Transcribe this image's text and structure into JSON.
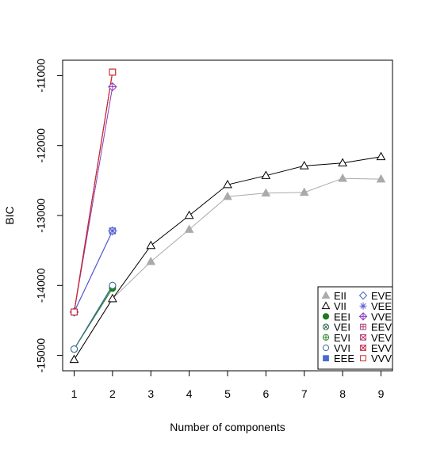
{
  "chart_data": {
    "type": "line",
    "title": "",
    "xlabel": "Number of components",
    "ylabel": "BIC",
    "x_ticks": [
      "1",
      "2",
      "3",
      "4",
      "5",
      "6",
      "7",
      "8",
      "9"
    ],
    "y_ticks": [
      "-15000",
      "-14000",
      "-13000",
      "-12000",
      "-11000"
    ],
    "xlim": [
      0.7,
      9.3
    ],
    "ylim": [
      -15220,
      -10780
    ],
    "grid": false,
    "legend_position": "bottom-right",
    "series": [
      {
        "name": "EII",
        "marker": "triangle-filled",
        "color": "#aaaaaa",
        "x": [
          1,
          2,
          3,
          4,
          5,
          6,
          7,
          8,
          9
        ],
        "values": [
          -15060,
          -14190,
          -13660,
          -13200,
          -12730,
          -12680,
          -12670,
          -12470,
          -12480
        ]
      },
      {
        "name": "VII",
        "marker": "triangle-open",
        "color": "#000000",
        "x": [
          1,
          2,
          3,
          4,
          5,
          6,
          7,
          8,
          9
        ],
        "values": [
          -15060,
          -14190,
          -13430,
          -13000,
          -12560,
          -12430,
          -12290,
          -12250,
          -12160
        ]
      },
      {
        "name": "EEI",
        "marker": "circle-filled",
        "color": "#1e7a1e",
        "x": [
          1,
          2
        ],
        "values": [
          -14910,
          -14040
        ]
      },
      {
        "name": "VEI",
        "marker": "circle-x",
        "color": "#2f6b50",
        "x": [
          1,
          2
        ],
        "values": [
          -14910,
          -14000
        ]
      },
      {
        "name": "EVI",
        "marker": "circle-plus",
        "color": "#2e8b2e",
        "x": [
          1,
          2
        ],
        "values": [
          -14910,
          -14010
        ]
      },
      {
        "name": "VVI",
        "marker": "circle-open",
        "color": "#3a6aa0",
        "x": [
          1,
          2
        ],
        "values": [
          -14910,
          -14000
        ]
      },
      {
        "name": "EEE",
        "marker": "square-filled",
        "color": "#4a6bc8",
        "x": [
          1,
          2
        ],
        "values": [
          -14380,
          -13220
        ]
      },
      {
        "name": "EVE",
        "marker": "diamond-open",
        "color": "#4a6bc8",
        "x": [
          1,
          2
        ],
        "values": [
          -14380,
          -13220
        ]
      },
      {
        "name": "VEE",
        "marker": "asterisk",
        "color": "#5a5ad8",
        "x": [
          1,
          2
        ],
        "values": [
          -14380,
          -13220
        ]
      },
      {
        "name": "VVE",
        "marker": "diamond-plus",
        "color": "#8a3ab8",
        "x": [
          1,
          2
        ],
        "values": [
          -14380,
          -11160
        ]
      },
      {
        "name": "EEV",
        "marker": "square-plus",
        "color": "#b03a7a",
        "x": [
          1,
          2
        ],
        "values": [
          -14380,
          -10950
        ]
      },
      {
        "name": "VEV",
        "marker": "square-x",
        "color": "#b0306a",
        "x": [
          1,
          2
        ],
        "values": [
          -14380,
          -10950
        ]
      },
      {
        "name": "EVV",
        "marker": "square-x",
        "color": "#c02a4a",
        "x": [
          1,
          2
        ],
        "values": [
          -14380,
          -10950
        ]
      },
      {
        "name": "VVV",
        "marker": "square-open",
        "color": "#c82a2a",
        "x": [
          1,
          2
        ],
        "values": [
          -14380,
          -10950
        ]
      }
    ]
  }
}
